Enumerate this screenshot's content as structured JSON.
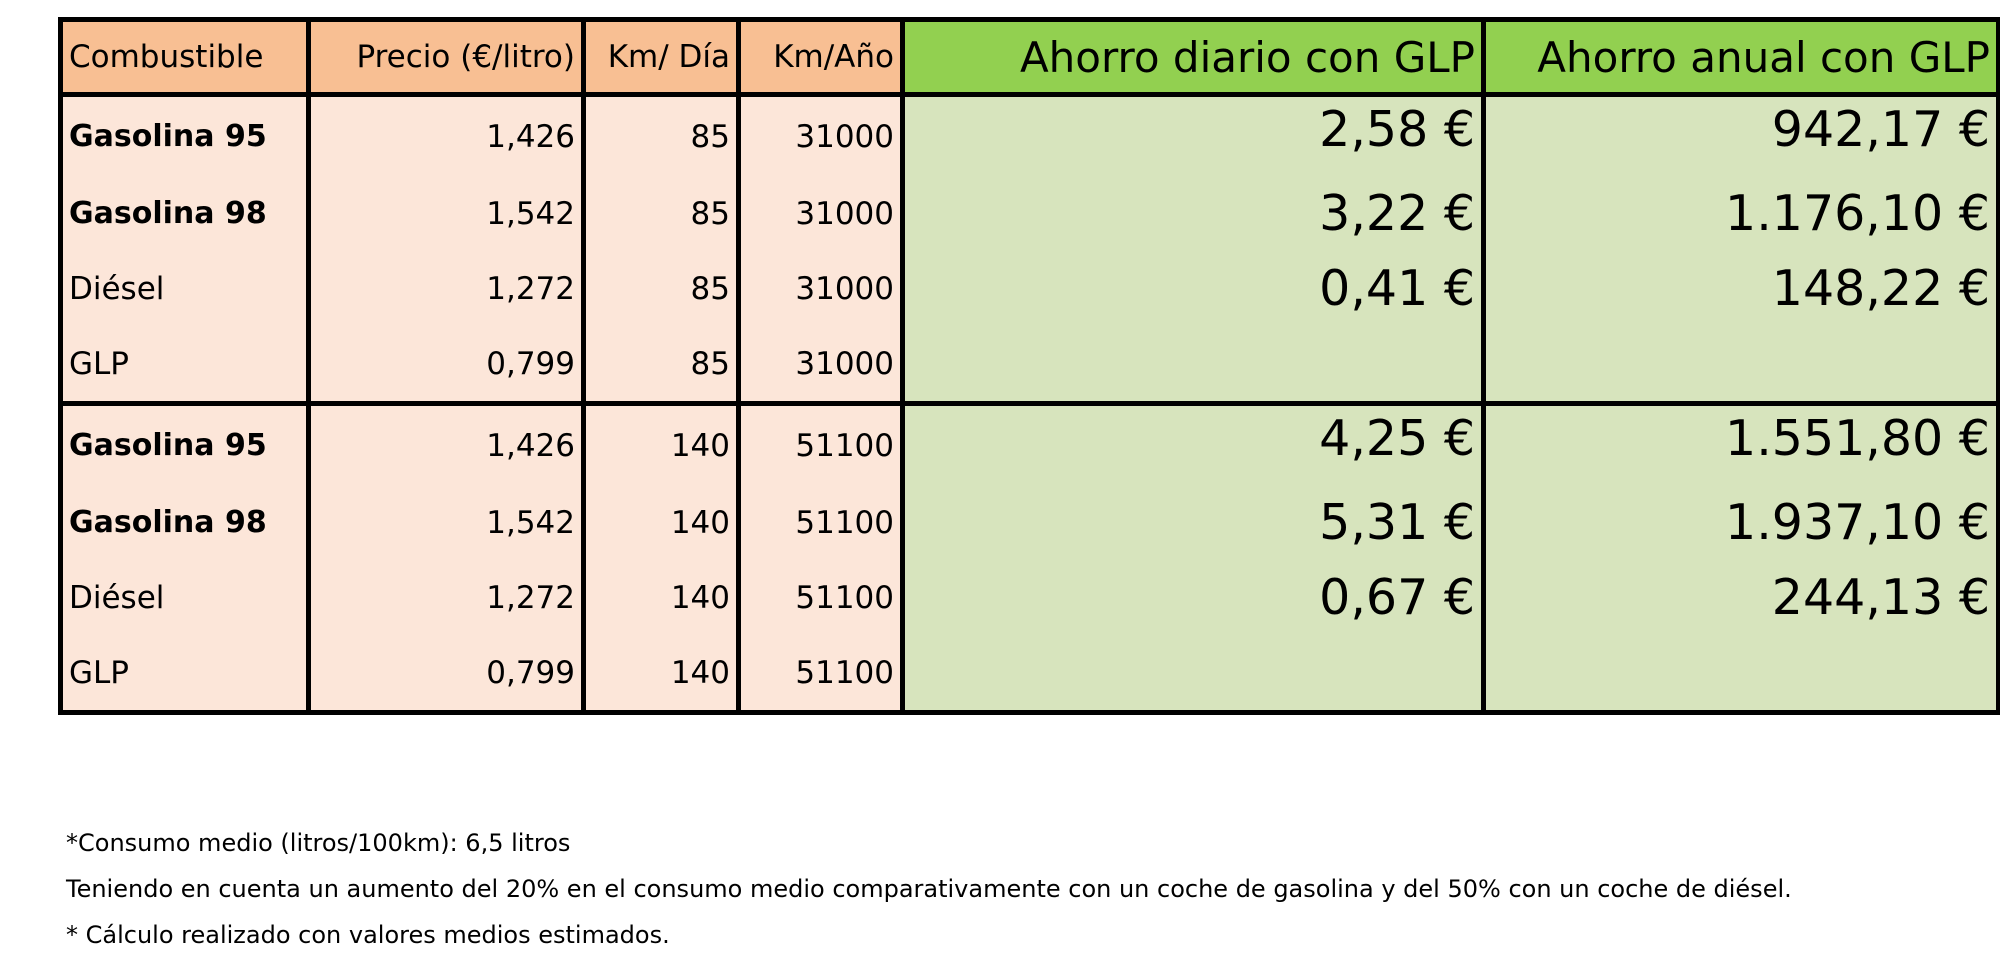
{
  "table": {
    "headers": {
      "fuel": "Combustible",
      "price": "Precio (€/litro)",
      "km_day": "Km/ Día",
      "km_year": "Km/Año",
      "daily_saving": "Ahorro diario con GLP",
      "annual_saving": "Ahorro anual con GLP"
    },
    "groups": [
      {
        "rows": [
          {
            "fuel": "Gasolina 95",
            "price": "1,426",
            "km_day": "85",
            "km_year": "31000",
            "daily": "2,58 €",
            "annual": "942,17 €",
            "bold": true
          },
          {
            "fuel": "Gasolina 98",
            "price": "1,542",
            "km_day": "85",
            "km_year": "31000",
            "daily": "3,22 €",
            "annual": "1.176,10 €",
            "bold": true
          },
          {
            "fuel": "Diésel",
            "price": "1,272",
            "km_day": "85",
            "km_year": "31000",
            "daily": "0,41 €",
            "annual": "148,22 €",
            "bold": false
          },
          {
            "fuel": "GLP",
            "price": "0,799",
            "km_day": "85",
            "km_year": "31000",
            "daily": "",
            "annual": "",
            "bold": false
          }
        ]
      },
      {
        "rows": [
          {
            "fuel": "Gasolina 95",
            "price": "1,426",
            "km_day": "140",
            "km_year": "51100",
            "daily": "4,25 €",
            "annual": "1.551,80 €",
            "bold": true
          },
          {
            "fuel": "Gasolina 98",
            "price": "1,542",
            "km_day": "140",
            "km_year": "51100",
            "daily": "5,31 €",
            "annual": "1.937,10 €",
            "bold": true
          },
          {
            "fuel": "Diésel",
            "price": "1,272",
            "km_day": "140",
            "km_year": "51100",
            "daily": "0,67 €",
            "annual": "244,13 €",
            "bold": false
          },
          {
            "fuel": "GLP",
            "price": "0,799",
            "km_day": "140",
            "km_year": "51100",
            "daily": "",
            "annual": "",
            "bold": false
          }
        ]
      }
    ]
  },
  "notes": [
    "*Consumo medio (litros/100km): 6,5 litros",
    "Teniendo en cuenta un aumento del 20% en el consumo medio comparativamente con un coche de gasolina y del 50% con un coche de diésel.",
    "* Cálculo realizado con valores medios estimados."
  ],
  "colors": {
    "header_left": "#f8bf93",
    "body_left": "#fce6d9",
    "header_green": "#92d050",
    "body_green": "#d7e4bd"
  }
}
